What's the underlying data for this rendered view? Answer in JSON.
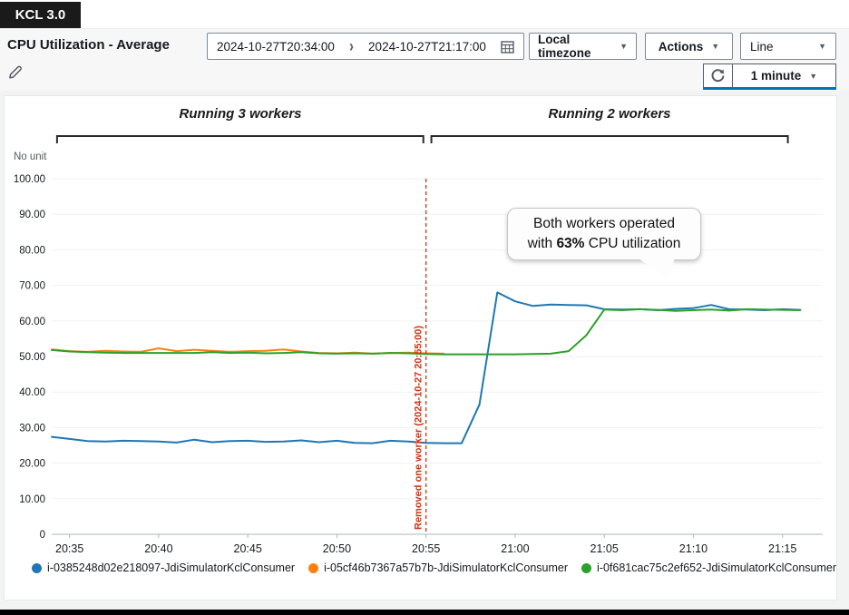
{
  "app_badge": "KCL 3.0",
  "header": {
    "title": "CPU Utilization - Average",
    "date_from": "2024-10-27T20:34:00",
    "date_to": "2024-10-27T21:17:00",
    "timezone_dropdown": "Local timezone",
    "actions_button": "Actions",
    "chart_type_dropdown": "Line",
    "period_dropdown": "1 minute"
  },
  "callout": {
    "line1": "Both workers operated",
    "line2_prefix": "with ",
    "line2_bold": "63%",
    "line2_suffix": " CPU utilization"
  },
  "chart_data": {
    "type": "line",
    "title": "CPU Utilization - Average",
    "ylabel": "No unit",
    "xlabel": "",
    "ylim": [
      0,
      100
    ],
    "yticks": [
      "100.00",
      "90.00",
      "80.00",
      "70.00",
      "60.00",
      "50.00",
      "40.00",
      "30.00",
      "20.00",
      "10.00",
      "0"
    ],
    "ytick_values": [
      100,
      90,
      80,
      70,
      60,
      50,
      40,
      30,
      20,
      10,
      0
    ],
    "x_start": "20:34",
    "x_end": "21:17",
    "span_minutes": 43,
    "xticks": [
      "20:35",
      "20:40",
      "20:45",
      "20:50",
      "20:55",
      "21:00",
      "21:05",
      "21:10",
      "21:15"
    ],
    "xtick_minutes": [
      1,
      6,
      11,
      16,
      21,
      26,
      31,
      36,
      41
    ],
    "grid": true,
    "legend_position": "bottom",
    "annotations": {
      "vline": {
        "minute": 21,
        "time": "20:55",
        "label": "Removed one worker (2024-10-27 20:55:00)",
        "color": "#d13212"
      },
      "brackets": [
        {
          "label": "Running 3 workers",
          "from_minute": 0.3,
          "to_minute": 20.85
        },
        {
          "label": "Running 2 workers",
          "from_minute": 21.3,
          "to_minute": 41.3
        }
      ]
    },
    "series": [
      {
        "name": "i-0385248d02e218097-JdiSimulatorKclConsumer",
        "color": "#1f77b4",
        "start_minute": 0,
        "values": [
          27.4,
          26.8,
          26.2,
          26.1,
          26.3,
          26.2,
          26.1,
          25.8,
          26.6,
          25.9,
          26.2,
          26.3,
          26.0,
          26.1,
          26.4,
          25.9,
          26.3,
          25.7,
          25.6,
          26.3,
          26.1,
          25.7,
          25.6,
          25.6,
          36.5,
          68.0,
          65.5,
          64.2,
          64.6,
          64.5,
          64.4,
          63.3,
          63.2,
          63.3,
          63.0,
          63.4,
          63.6,
          64.5,
          63.3,
          63.2,
          63.0,
          63.3,
          63.1
        ]
      },
      {
        "name": "i-05cf46b7367a57b7b-JdiSimulatorKclConsumer",
        "color": "#ff7f0e",
        "start_minute": 0,
        "values": [
          52.0,
          51.5,
          51.3,
          51.6,
          51.4,
          51.3,
          52.3,
          51.5,
          51.9,
          51.6,
          51.3,
          51.5,
          51.6,
          52.0,
          51.4,
          51.0,
          50.9,
          51.1,
          50.8,
          51.0,
          51.1,
          50.9,
          50.8
        ]
      },
      {
        "name": "i-0f681cac75c2ef652-JdiSimulatorKclConsumer",
        "color": "#2ca02c",
        "start_minute": 0,
        "values": [
          51.8,
          51.4,
          51.2,
          51.1,
          51.0,
          51.0,
          51.0,
          51.0,
          51.0,
          51.2,
          51.0,
          51.1,
          50.9,
          51.0,
          51.2,
          50.9,
          50.8,
          50.9,
          50.8,
          51.0,
          50.9,
          50.7,
          50.6,
          50.6,
          50.6,
          50.6,
          50.6,
          50.7,
          50.8,
          51.5,
          56.0,
          63.2,
          63.0,
          63.3,
          63.1,
          62.8,
          63.0,
          63.2,
          62.9,
          63.3,
          63.2,
          63.1,
          63.0
        ]
      }
    ]
  }
}
